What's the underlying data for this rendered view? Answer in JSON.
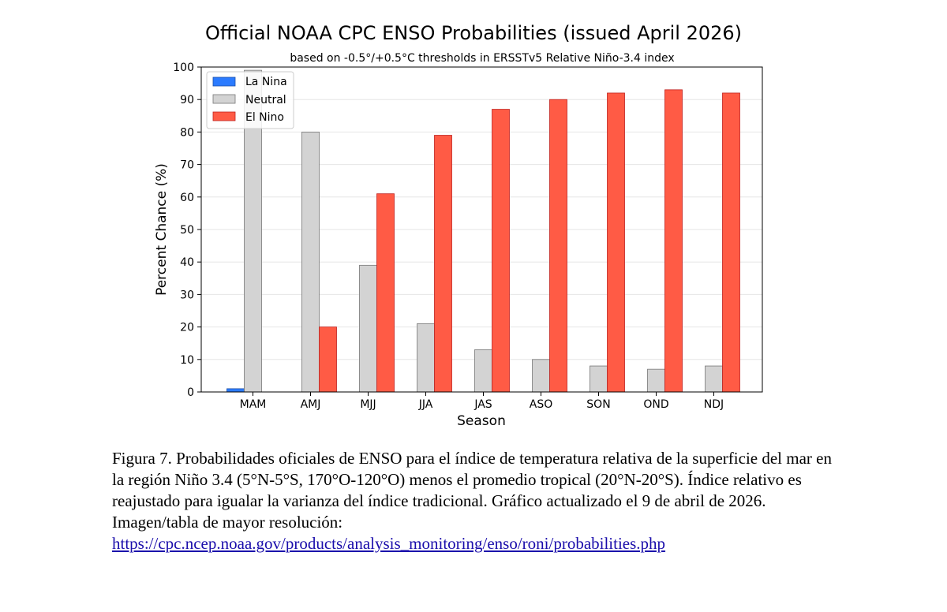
{
  "chart_data": {
    "type": "bar",
    "title": "Official NOAA CPC ENSO Probabilities (issued April 2026)",
    "subtitle": "based on -0.5°/+0.5°C thresholds in ERSSTv5 Relative Niño-3.4 index",
    "xlabel": "Season",
    "ylabel": "Percent Chance (%)",
    "ylim": [
      0,
      100
    ],
    "yticks": [
      0,
      10,
      20,
      30,
      40,
      50,
      60,
      70,
      80,
      90,
      100
    ],
    "grid": true,
    "legend_position": "top-left",
    "categories": [
      "MAM",
      "AMJ",
      "MJJ",
      "JJA",
      "JAS",
      "ASO",
      "SON",
      "OND",
      "NDJ"
    ],
    "series": [
      {
        "name": "La Nina",
        "color": "#2b7bff",
        "values": [
          1,
          0,
          0,
          0,
          0,
          0,
          0,
          0,
          0
        ]
      },
      {
        "name": "Neutral",
        "color": "#d3d3d3",
        "values": [
          99,
          80,
          39,
          21,
          13,
          10,
          8,
          7,
          8
        ]
      },
      {
        "name": "El Nino",
        "color": "#ff5b45",
        "values": [
          0,
          20,
          61,
          79,
          87,
          90,
          92,
          93,
          92
        ]
      }
    ]
  },
  "caption": {
    "text": "Figura 7. Probabilidades oficiales de ENSO para el índice de temperatura relativa de la superficie del mar en la región Niño 3.4 (5°N-5°S, 170°O-120°O) menos el promedio tropical (20°N-20°S). Índice relativo es reajustado para igualar la varianza del índice tradicional. Gráfico actualizado el 9 de abril de 2026. Imagen/tabla de mayor resolución:",
    "link": "https://cpc.ncep.noaa.gov/products/analysis_monitoring/enso/roni/probabilities.php"
  }
}
